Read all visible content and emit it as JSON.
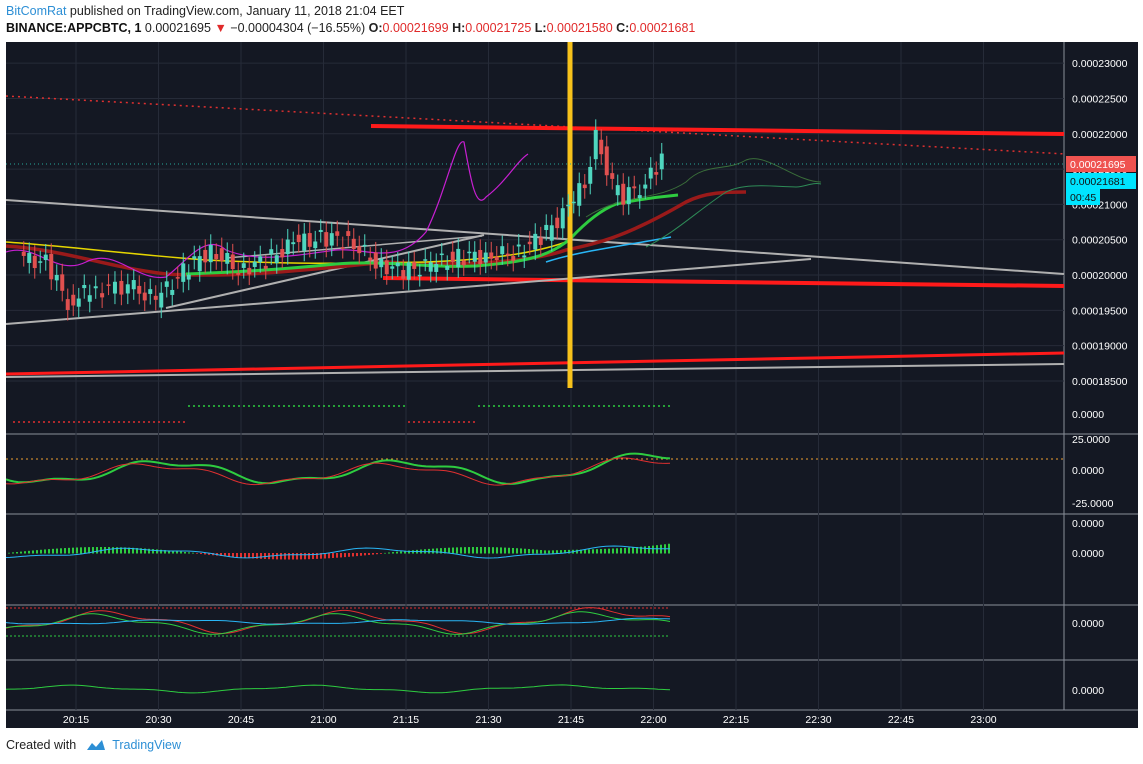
{
  "header": {
    "author": "BitComRat",
    "published_text": "published on TradingView.com, January 11, 2018 21:04 EET",
    "symbol": "BINANCE:APPCBTC, 1",
    "last": "0.00021695",
    "change": "−0.00004304 (−16.55%)",
    "o_label": "O:",
    "o_value": "0.00021699",
    "h_label": "H:",
    "h_value": "0.00021725",
    "l_label": "L:",
    "l_value": "0.00021580",
    "c_label": "C:",
    "c_value": "0.00021681"
  },
  "footer": {
    "created_with": "Created with",
    "brand": "TradingView"
  },
  "colors": {
    "background": "#141823",
    "up": "#4fd6bf",
    "down": "#e0504f",
    "trend_red": "#ff1a1a",
    "vertical_marker": "#f7c21b",
    "grid": "#262b38"
  },
  "chart_data": {
    "type": "candlestick",
    "x_ticks": [
      "20:15",
      "20:30",
      "20:45",
      "21:00",
      "21:15",
      "21:30",
      "21:45",
      "22:00",
      "22:15",
      "22:30",
      "22:45",
      "23:00"
    ],
    "y_ticks": [
      "0.00023000",
      "0.00022500",
      "0.00022000",
      "0.00021500",
      "0.00021000",
      "0.00020500",
      "0.00020000",
      "0.00019500",
      "0.00019000",
      "0.00018500"
    ],
    "ylim": [
      0.000184,
      0.000233
    ],
    "price_labels": {
      "last": "0.00021695",
      "close": "0.00021681",
      "countdown": "00:45"
    },
    "vertical_marker_time": "21:45",
    "close_series": [
      {
        "t": "20:05",
        "v": 0.0002025
      },
      {
        "t": "20:10",
        "v": 0.0002018
      },
      {
        "t": "20:14",
        "v": 0.0001962
      },
      {
        "t": "20:18",
        "v": 0.0001978
      },
      {
        "t": "20:25",
        "v": 0.0001985
      },
      {
        "t": "20:30",
        "v": 0.0001965
      },
      {
        "t": "20:35",
        "v": 0.0002005
      },
      {
        "t": "20:40",
        "v": 0.0002036
      },
      {
        "t": "20:45",
        "v": 0.0002008
      },
      {
        "t": "20:50",
        "v": 0.000202
      },
      {
        "t": "20:55",
        "v": 0.0002045
      },
      {
        "t": "21:00",
        "v": 0.0002052
      },
      {
        "t": "21:05",
        "v": 0.000205
      },
      {
        "t": "21:10",
        "v": 0.0002018
      },
      {
        "t": "21:15",
        "v": 0.0002005
      },
      {
        "t": "21:20",
        "v": 0.0002015
      },
      {
        "t": "21:25",
        "v": 0.0002025
      },
      {
        "t": "21:30",
        "v": 0.0002028
      },
      {
        "t": "21:35",
        "v": 0.000203
      },
      {
        "t": "21:40",
        "v": 0.0002052
      },
      {
        "t": "21:45",
        "v": 0.0002095
      },
      {
        "t": "21:48",
        "v": 0.000213
      },
      {
        "t": "21:50",
        "v": 0.00022
      },
      {
        "t": "21:53",
        "v": 0.0002125
      },
      {
        "t": "21:55",
        "v": 0.000211
      },
      {
        "t": "21:58",
        "v": 0.0002125
      },
      {
        "t": "22:00",
        "v": 0.000214
      },
      {
        "t": "22:02",
        "v": 0.0002168
      }
    ],
    "indicator_panes": [
      {
        "name": "pane-1",
        "y_ticks": [
          "0.0000"
        ]
      },
      {
        "name": "pane-2",
        "y_ticks": [
          "25.0000",
          "0.0000",
          "-25.0000"
        ]
      },
      {
        "name": "pane-3",
        "y_ticks": [
          "0.0000",
          "0.0000"
        ]
      },
      {
        "name": "pane-4",
        "y_ticks": [
          "0.0000"
        ]
      },
      {
        "name": "pane-5",
        "y_ticks": [
          "0.0000"
        ]
      }
    ]
  }
}
